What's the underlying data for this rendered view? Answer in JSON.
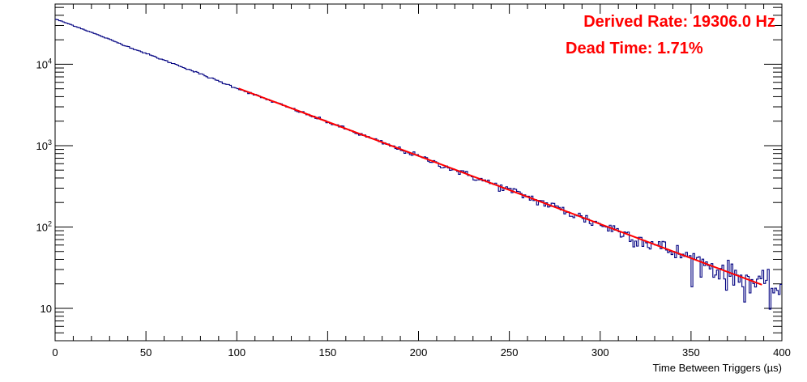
{
  "chart_data": {
    "type": "line",
    "xlabel": "Time Between Triggers (µs)",
    "ylabel": "",
    "xlim": [
      0,
      400
    ],
    "ylim": [
      4,
      55000
    ],
    "yscale": "log",
    "x_ticks": [
      0,
      50,
      100,
      150,
      200,
      250,
      300,
      350,
      400
    ],
    "x_tick_labels": [
      "0",
      "50",
      "100",
      "150",
      "200",
      "250",
      "300",
      "350",
      "400"
    ],
    "y_ticks": [
      10,
      100,
      1000,
      10000
    ],
    "y_tick_bases": [
      "10",
      "10",
      "10",
      "10"
    ],
    "y_tick_exponents": [
      "",
      "2",
      "3",
      "4"
    ],
    "grid": false,
    "series": [
      {
        "kind": "histogram",
        "color": "#000080",
        "bin_width": 1,
        "x": [
          0,
          10,
          20,
          30,
          40,
          50,
          60,
          70,
          80,
          90,
          100,
          125,
          150,
          175,
          200,
          225,
          250,
          275,
          300,
          325,
          350,
          375,
          390,
          400
        ],
        "y": [
          36000,
          30000,
          24700,
          20200,
          16500,
          13600,
          11200,
          9300,
          7600,
          6200,
          5100,
          3150,
          1950,
          1200,
          740,
          455,
          285,
          176,
          108,
          67,
          41,
          25,
          19,
          17
        ]
      },
      {
        "kind": "fit",
        "color": "#ff0000",
        "x": [
          101,
          389
        ],
        "y": [
          5050,
          19.5
        ]
      }
    ],
    "annotations": [
      "Derived Rate: 19306.0 Hz",
      "Dead Time: 1.71%"
    ]
  }
}
